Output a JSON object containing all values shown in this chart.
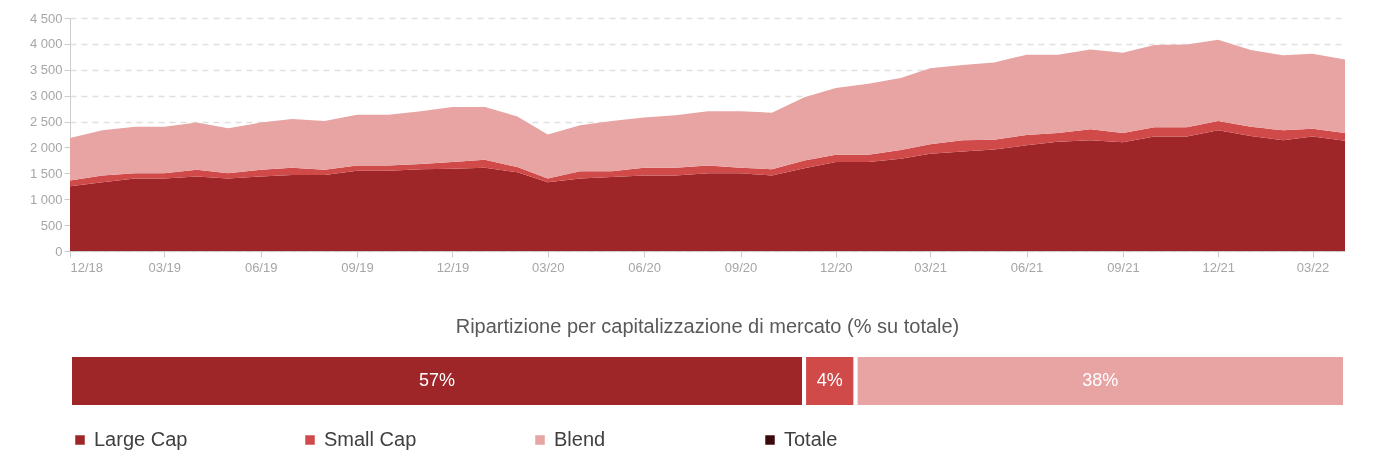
{
  "chart_data": [
    {
      "type": "area",
      "stacked": true,
      "x": [
        "2018-12",
        "2019-01",
        "2019-02",
        "2019-03",
        "2019-04",
        "2019-05",
        "2019-06",
        "2019-07",
        "2019-08",
        "2019-09",
        "2019-10",
        "2019-11",
        "2019-12",
        "2020-01",
        "2020-02",
        "2020-03",
        "2020-04",
        "2020-05",
        "2020-06",
        "2020-07",
        "2020-08",
        "2020-09",
        "2020-10",
        "2020-11",
        "2020-12",
        "2021-01",
        "2021-02",
        "2021-03",
        "2021-04",
        "2021-05",
        "2021-06",
        "2021-07",
        "2021-08",
        "2021-09",
        "2021-10",
        "2021-11",
        "2021-12",
        "2022-01",
        "2022-02",
        "2022-03",
        "2022-04"
      ],
      "xlim": [
        "2018-12",
        "2022-04"
      ],
      "xticks": [
        {
          "value": "2018-12",
          "label": "12/18"
        },
        {
          "value": "2019-03",
          "label": "03/19"
        },
        {
          "value": "2019-06",
          "label": "06/19"
        },
        {
          "value": "2019-09",
          "label": "09/19"
        },
        {
          "value": "2019-12",
          "label": "12/19"
        },
        {
          "value": "2020-03",
          "label": "03/20"
        },
        {
          "value": "2020-06",
          "label": "06/20"
        },
        {
          "value": "2020-09",
          "label": "09/20"
        },
        {
          "value": "2020-12",
          "label": "12/20"
        },
        {
          "value": "2021-03",
          "label": "03/21"
        },
        {
          "value": "2021-06",
          "label": "06/21"
        },
        {
          "value": "2021-09",
          "label": "09/21"
        },
        {
          "value": "2021-12",
          "label": "12/21"
        },
        {
          "value": "2022-03",
          "label": "03/22"
        }
      ],
      "ylim": [
        0,
        4500
      ],
      "yticks": [
        0,
        500,
        {
          "value": 1000,
          "label": "1 000"
        },
        {
          "value": 1500,
          "label": "1 500"
        },
        {
          "value": 2000,
          "label": "2 000"
        },
        {
          "value": 2500,
          "label": "2 500"
        },
        {
          "value": 3000,
          "label": "3 000"
        },
        {
          "value": 3500,
          "label": "3 500"
        },
        {
          "value": 4000,
          "label": "4 000"
        },
        {
          "value": 4500,
          "label": "4 500"
        }
      ],
      "grid": "y",
      "legend": "bottom",
      "series": [
        {
          "name": "Large Cap",
          "color": "#9e2628",
          "values": [
            1250,
            1330,
            1400,
            1400,
            1440,
            1400,
            1440,
            1470,
            1470,
            1550,
            1550,
            1580,
            1590,
            1610,
            1520,
            1330,
            1400,
            1430,
            1460,
            1460,
            1500,
            1500,
            1460,
            1600,
            1720,
            1720,
            1780,
            1880,
            1920,
            1960,
            2040,
            2110,
            2140,
            2100,
            2210,
            2210,
            2330,
            2220,
            2140,
            2210,
            2130
          ]
        },
        {
          "name": "Small Cap",
          "color": "#d04a4a",
          "values": [
            110,
            130,
            100,
            100,
            130,
            100,
            130,
            140,
            100,
            100,
            100,
            100,
            130,
            150,
            100,
            70,
            140,
            110,
            150,
            150,
            150,
            110,
            120,
            150,
            140,
            140,
            170,
            180,
            220,
            190,
            200,
            170,
            210,
            180,
            180,
            180,
            180,
            180,
            190,
            150,
            150
          ]
        },
        {
          "name": "Blend",
          "color": "#e8a3a3",
          "values": [
            820,
            870,
            900,
            900,
            910,
            870,
            910,
            940,
            940,
            980,
            980,
            1020,
            1060,
            1020,
            980,
            850,
            890,
            970,
            970,
            1010,
            1050,
            1090,
            1090,
            1220,
            1290,
            1370,
            1390,
            1470,
            1450,
            1490,
            1550,
            1510,
            1540,
            1550,
            1590,
            1600,
            1570,
            1480,
            1450,
            1450,
            1420
          ]
        },
        {
          "name": "Totale",
          "color": "#3b0a0a",
          "values": [
            null,
            null,
            null,
            null,
            null,
            null,
            null,
            null,
            null,
            null,
            null,
            null,
            null,
            null,
            null,
            null,
            null,
            null,
            null,
            null,
            null,
            null,
            null,
            null,
            null,
            null,
            null,
            null,
            null,
            null,
            null,
            null,
            null,
            null,
            null,
            null,
            null,
            null,
            null,
            null,
            null
          ]
        }
      ]
    },
    {
      "type": "bar",
      "orientation": "horizontal",
      "stacked": true,
      "title": "Ripartizione  per capitalizzazione   di mercato  (% su totale)",
      "tick_labels": false,
      "categories": [
        null
      ],
      "series": [
        {
          "color": "#9e2628",
          "values": [
            57
          ],
          "value_labels": [
            "57%"
          ]
        },
        {
          "color": "#d04a4a",
          "values": [
            4
          ],
          "value_labels": [
            "4%"
          ]
        },
        {
          "color": "#e8a3a3",
          "values": [
            38
          ],
          "value_labels": [
            "38%"
          ]
        }
      ]
    }
  ]
}
